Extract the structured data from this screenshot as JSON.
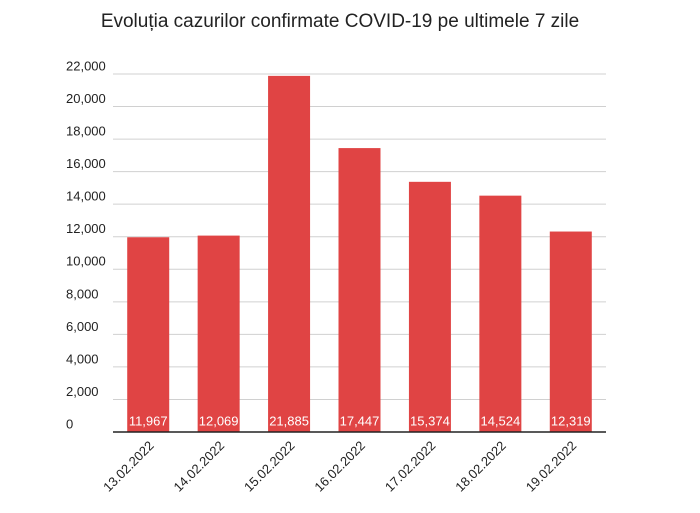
{
  "chart_data": {
    "type": "bar",
    "title": "Evoluția cazurilor confirmate COVID-19 pe ultimele 7 zile",
    "categories": [
      "13.02.2022",
      "14.02.2022",
      "15.02.2022",
      "16.02.2022",
      "17.02.2022",
      "18.02.2022",
      "19.02.2022"
    ],
    "values": [
      11967,
      12069,
      21885,
      17447,
      15374,
      14524,
      12319
    ],
    "value_labels": [
      "11,967",
      "12,069",
      "21,885",
      "17,447",
      "15,374",
      "14,524",
      "12,319"
    ],
    "color": "#e04444",
    "ylim": [
      0,
      22000
    ],
    "yticks": [
      0,
      {
        "value": 2000,
        "label": "2,000"
      },
      {
        "value": 4000,
        "label": "4,000"
      },
      {
        "value": 6000,
        "label": "6,000"
      },
      {
        "value": 8000,
        "label": "8,000"
      },
      {
        "value": 10000,
        "label": "10,000"
      },
      {
        "value": 12000,
        "label": "12,000"
      },
      {
        "value": 14000,
        "label": "14,000"
      },
      {
        "value": 16000,
        "label": "16,000"
      },
      {
        "value": 18000,
        "label": "18,000"
      },
      {
        "value": 20000,
        "label": "20,000"
      },
      {
        "value": 22000,
        "label": "22,000"
      }
    ],
    "grid": true
  }
}
